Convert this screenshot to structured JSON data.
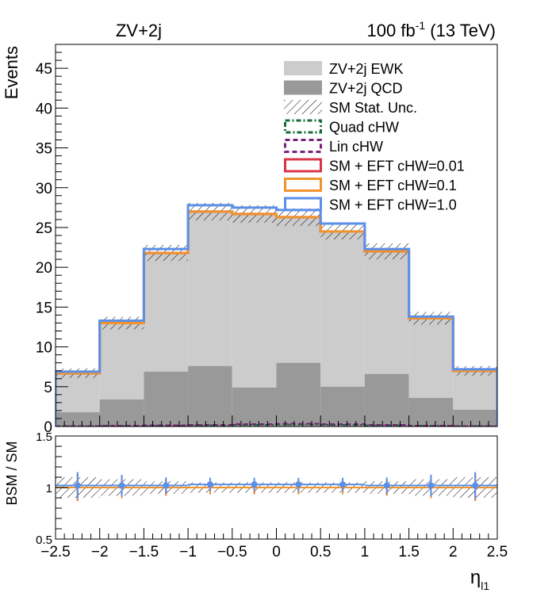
{
  "chart_data": [
    {
      "type": "histogram",
      "title_left": "ZV+2j",
      "title_right": {
        "lumi": "100 fb",
        "exp": "-1",
        "energy": " (13 TeV)"
      },
      "ylabel": "Events",
      "xlim": [
        -2.5,
        2.5
      ],
      "ylim": [
        0,
        48
      ],
      "yticks": [
        0,
        5,
        10,
        15,
        20,
        25,
        30,
        35,
        40,
        45
      ],
      "bin_edges": [
        -2.5,
        -2,
        -1.5,
        -1,
        -0.5,
        0,
        0.5,
        1,
        1.5,
        2,
        2.5
      ],
      "legend": [
        {
          "label": "ZV+2j EWK",
          "style": "fill",
          "color": "#cccccc"
        },
        {
          "label": "ZV+2j QCD",
          "style": "fill",
          "color": "#999999"
        },
        {
          "label": "SM Stat. Unc.",
          "style": "hatch",
          "color": "#000000"
        },
        {
          "label": "Quad cHW",
          "style": "dashdot",
          "color": "#1a6b3a"
        },
        {
          "label": "Lin cHW",
          "style": "dash",
          "color": "#7a1f7a"
        },
        {
          "label": "SM + EFT cHW=0.01",
          "style": "line",
          "color": "#d9344a"
        },
        {
          "label": "SM + EFT cHW=0.1",
          "style": "line",
          "color": "#f0922e"
        },
        {
          "label": "SM + EFT cHW=1.0",
          "style": "line",
          "color": "#5b8fe8"
        }
      ],
      "series": [
        {
          "name": "ZV+2j QCD",
          "values": [
            1.8,
            3.4,
            6.9,
            7.6,
            4.9,
            8.0,
            5.0,
            6.6,
            3.6,
            2.1
          ]
        },
        {
          "name": "ZV+2j EWK",
          "values": [
            4.9,
            9.6,
            14.9,
            19.4,
            21.8,
            18.3,
            19.5,
            15.4,
            10.0,
            4.9
          ]
        },
        {
          "name": "SM + EFT cHW=0.01",
          "values": [
            6.7,
            13.0,
            21.8,
            27.0,
            26.7,
            26.3,
            24.5,
            22.0,
            13.6,
            7.0
          ]
        },
        {
          "name": "SM + EFT cHW=0.1",
          "values": [
            6.7,
            13.0,
            21.8,
            27.0,
            26.7,
            26.3,
            24.5,
            22.0,
            13.6,
            7.0
          ]
        },
        {
          "name": "SM + EFT cHW=1.0",
          "values": [
            6.9,
            13.3,
            22.3,
            27.8,
            27.5,
            27.2,
            25.5,
            22.3,
            13.8,
            7.2
          ]
        },
        {
          "name": "Quad cHW",
          "values": [
            0.02,
            0.05,
            0.1,
            0.15,
            0.2,
            0.25,
            0.2,
            0.15,
            0.1,
            0.05
          ]
        },
        {
          "name": "Lin cHW",
          "values": [
            0.05,
            0.1,
            0.15,
            0.2,
            0.3,
            0.35,
            0.3,
            0.2,
            0.1,
            0.05
          ]
        }
      ],
      "stat_unc": [
        0.6,
        0.8,
        1.0,
        1.1,
        1.1,
        1.1,
        1.0,
        1.0,
        0.8,
        0.6
      ]
    },
    {
      "type": "ratio",
      "ylabel": "BSM / SM",
      "xlabel": "η",
      "xlabel_sub": "l1",
      "xlim": [
        -2.5,
        2.5
      ],
      "ylim": [
        0.5,
        1.5
      ],
      "yticks": [
        "0.5",
        "1",
        "1.5"
      ],
      "xticks": [
        "−2.5",
        "−2",
        "−1.5",
        "−1",
        "−0.5",
        "0",
        "0.5",
        "1",
        "1.5",
        "2",
        "2.5"
      ],
      "x": [
        -2.25,
        -1.75,
        -1.25,
        -0.75,
        -0.25,
        0.25,
        0.75,
        1.25,
        1.75,
        2.25
      ],
      "band": [
        0.1,
        0.08,
        0.06,
        0.05,
        0.05,
        0.05,
        0.05,
        0.06,
        0.08,
        0.1
      ],
      "series": [
        {
          "name": "SM + EFT cHW=0.01",
          "values": [
            1,
            1,
            1,
            1,
            1,
            1,
            1,
            1,
            1,
            1
          ]
        },
        {
          "name": "SM + EFT cHW=0.1",
          "values": [
            1,
            1,
            1,
            1,
            1,
            1,
            1,
            1,
            1,
            1
          ]
        },
        {
          "name": "SM + EFT cHW=1.0",
          "values": [
            1.02,
            1.02,
            1.02,
            1.03,
            1.03,
            1.03,
            1.03,
            1.02,
            1.02,
            1.02
          ]
        }
      ]
    }
  ]
}
